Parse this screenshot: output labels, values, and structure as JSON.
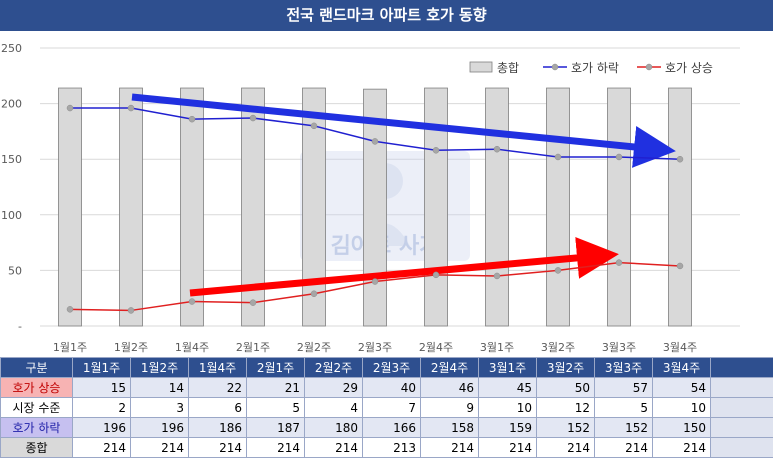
{
  "title": "전국 랜드마크 아파트 호가 동향",
  "chart_data": {
    "type": "bar",
    "categories": [
      "1월1주",
      "1월2주",
      "1월4주",
      "2월1주",
      "2월2주",
      "2월3주",
      "2월4주",
      "3월1주",
      "3월2주",
      "3월3주",
      "3월4주"
    ],
    "ylim": [
      0,
      250
    ],
    "yticks": [
      "-",
      "50",
      "100",
      "150",
      "200",
      "250"
    ],
    "ytick_values": [
      0,
      50,
      100,
      150,
      200,
      250
    ],
    "grid": true,
    "legend_position": "top-right",
    "series": [
      {
        "name": "총합",
        "type": "bar",
        "color": "#d9d9d9",
        "values": [
          214,
          214,
          214,
          214,
          214,
          213,
          214,
          214,
          214,
          214,
          214
        ]
      },
      {
        "name": "호가 하락",
        "type": "line",
        "color": "#2020d0",
        "values": [
          196,
          196,
          186,
          187,
          180,
          166,
          158,
          159,
          152,
          152,
          150
        ]
      },
      {
        "name": "호가 상승",
        "type": "line",
        "color": "#e02020",
        "values": [
          15,
          14,
          22,
          21,
          29,
          40,
          46,
          45,
          50,
          57,
          54
        ]
      }
    ],
    "annotations": [
      {
        "type": "arrow",
        "color": "#2030e0",
        "direction": "down-trend"
      },
      {
        "type": "arrow",
        "color": "#ff0000",
        "direction": "up-trend"
      }
    ]
  },
  "watermark_text": "김아트 사가",
  "table": {
    "header_label": "구분",
    "columns": [
      "1월1주",
      "1월2주",
      "1월4주",
      "2월1주",
      "2월2주",
      "2월3주",
      "2월4주",
      "3월1주",
      "3월2주",
      "3월3주",
      "3월4주"
    ],
    "rows": [
      {
        "label": "호가 상승",
        "values": [
          15,
          14,
          22,
          21,
          29,
          40,
          46,
          45,
          50,
          57,
          54
        ]
      },
      {
        "label": "시장 수준",
        "values": [
          2,
          3,
          6,
          5,
          4,
          7,
          9,
          10,
          12,
          5,
          10
        ]
      },
      {
        "label": "호가 하락",
        "values": [
          196,
          196,
          186,
          187,
          180,
          166,
          158,
          159,
          152,
          152,
          150
        ]
      },
      {
        "label": "종합",
        "values": [
          214,
          214,
          214,
          214,
          214,
          213,
          214,
          214,
          214,
          214,
          214
        ]
      }
    ]
  }
}
